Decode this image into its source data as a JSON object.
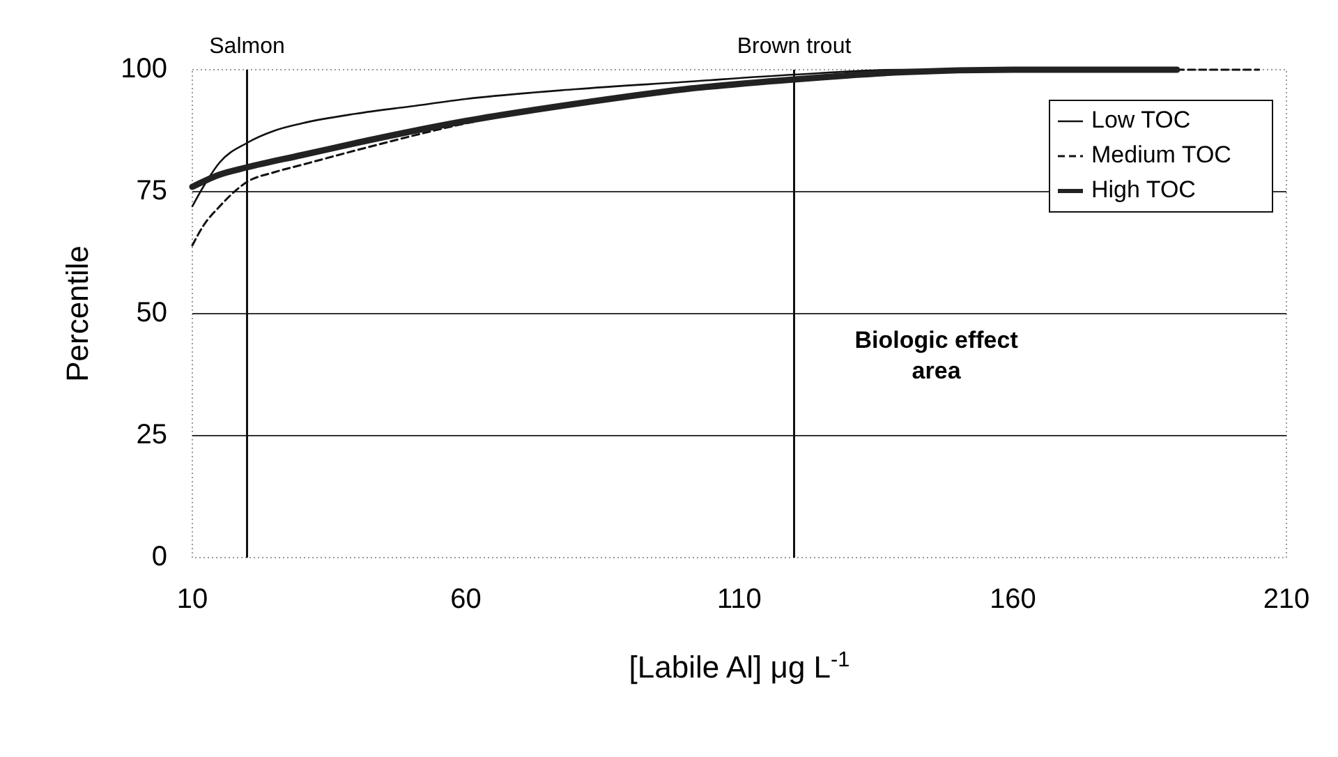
{
  "chart_data": {
    "type": "line",
    "xlabel": "[Labile Al] μg L$^{-1}$",
    "ylabel": "Percentile",
    "xlim": [
      10,
      210
    ],
    "xticks": [
      10,
      60,
      110,
      160,
      210
    ],
    "ylim": [
      0,
      100
    ],
    "yticks": [
      0,
      25,
      50,
      75,
      100
    ],
    "grid": "y",
    "legend": "top right",
    "series": [
      {
        "name": "Low TOC",
        "color": "#111111",
        "line_style": "solid",
        "x": [
          10,
          12,
          15,
          20,
          25,
          30,
          40,
          50,
          60,
          80,
          100,
          120,
          140,
          160,
          190
        ],
        "values": [
          72,
          76,
          81,
          85,
          87.5,
          89,
          91,
          92.5,
          94,
          96,
          97.5,
          99,
          100,
          100,
          100
        ]
      },
      {
        "name": "Medium TOC",
        "color": "#111111",
        "line_style": "dashed",
        "x": [
          10,
          12,
          15,
          20,
          25,
          30,
          40,
          60,
          80,
          100,
          120,
          140,
          160,
          190,
          205
        ],
        "values": [
          64,
          68,
          72,
          77,
          79,
          80.5,
          83.5,
          89,
          93,
          96,
          98,
          99.5,
          100,
          100,
          100
        ]
      },
      {
        "name": "High TOC",
        "color": "#222222",
        "line_style": "solid",
        "x": [
          10,
          15,
          20,
          30,
          40,
          60,
          80,
          100,
          120,
          140,
          160,
          190
        ],
        "values": [
          76,
          78.5,
          80,
          82.5,
          85,
          89.5,
          93,
          96,
          98,
          99.5,
          100,
          100
        ]
      }
    ],
    "ref_lines": [
      {
        "axis": "x",
        "value": 20,
        "label": "Salmon"
      },
      {
        "axis": "x",
        "value": 120,
        "label": "Brown trout"
      }
    ],
    "annotations": [
      "Biologic effect\narea"
    ]
  }
}
